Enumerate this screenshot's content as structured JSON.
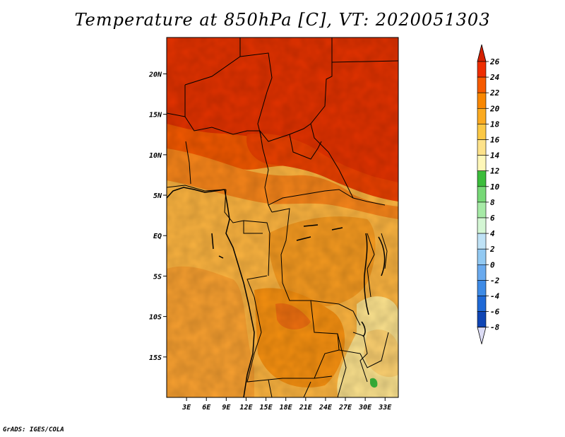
{
  "title": "Temperature at 850hPa [C], VT: 2020051303",
  "credit": "GrADS: IGES/COLA",
  "map": {
    "lat_labels": [
      "20N",
      "15N",
      "10N",
      "5N",
      "EQ",
      "5S",
      "10S",
      "15S"
    ],
    "lat_values": [
      20,
      15,
      10,
      5,
      0,
      -5,
      -10,
      -15
    ],
    "lon_labels": [
      "3E",
      "6E",
      "9E",
      "12E",
      "15E",
      "18E",
      "21E",
      "24E",
      "27E",
      "30E",
      "33E"
    ],
    "lon_values": [
      3,
      6,
      9,
      12,
      15,
      18,
      21,
      24,
      27,
      30,
      33
    ],
    "lon_range": [
      0,
      35
    ],
    "lat_range": [
      -20,
      24.5
    ]
  },
  "colorbar": {
    "labels": [
      "26",
      "24",
      "22",
      "20",
      "18",
      "16",
      "14",
      "12",
      "10",
      "8",
      "6",
      "4",
      "2",
      "0",
      "-2",
      "-4",
      "-6",
      "-8"
    ],
    "colors": [
      "#ee2d00",
      "#f65a00",
      "#f98700",
      "#fbaa20",
      "#fbc845",
      "#fde28a",
      "#fef7b8",
      "#3cbd3c",
      "#77d877",
      "#a6eaa6",
      "#d4f6d4",
      "#bfe2f6",
      "#92c9f2",
      "#6aaaee",
      "#3e8be6",
      "#1f69d6",
      "#0f45b4",
      "#081880"
    ],
    "top_arrow_color": "#d42000",
    "bottom_arrow_color": "#dcdcf5"
  },
  "colors": {
    "hot": "#dd2200",
    "warm": "#f05000",
    "orange": "#f68a00",
    "light_orange": "#fbb040",
    "yellow_orange": "#fcc24a",
    "pale": "#fde38e",
    "green": "#3cbd3c"
  }
}
